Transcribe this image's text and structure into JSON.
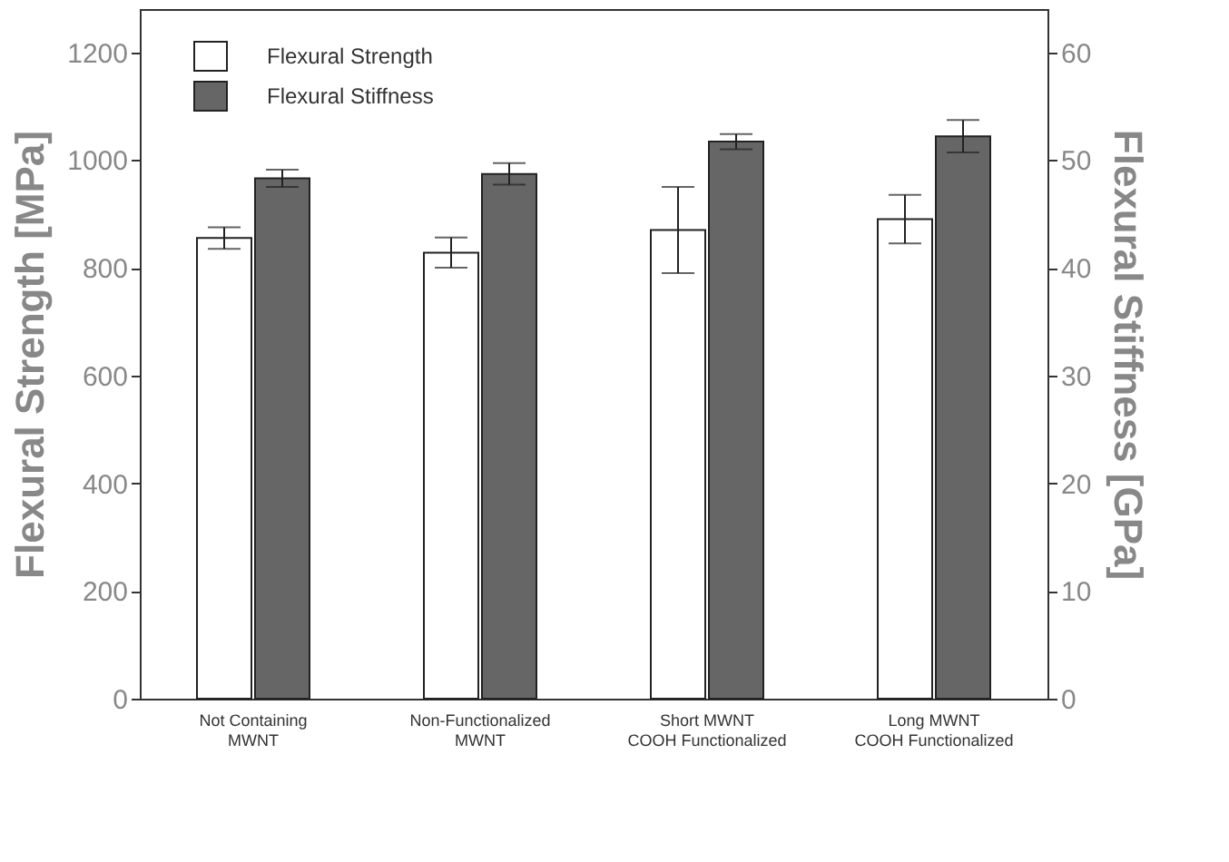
{
  "chart_data": {
    "type": "bar",
    "categories": [
      "Not Containing\nMWNT",
      "Non-Functionalized\nMWNT",
      "Short MWNT\nCOOH Functionalized",
      "Long MWNT\nCOOH Functionalized"
    ],
    "ylabel": "Flexural Strength [MPa]",
    "y2label": "Flexural Stiffness [GPa]",
    "ylim": [
      0,
      1280
    ],
    "yticks": [
      0,
      200,
      400,
      600,
      800,
      1000,
      1200
    ],
    "y2lim": [
      0,
      64
    ],
    "y2ticks": [
      0,
      10,
      20,
      30,
      40,
      50,
      60
    ],
    "legend": "top left",
    "grid": false,
    "series": [
      {
        "name": "Flexural Strength",
        "color": "#ffffff",
        "values": [
          855,
          828,
          870,
          890
        ],
        "errors": [
          20,
          28,
          80,
          45
        ]
      },
      {
        "name": "Flexural Stiffness",
        "color": "#666666",
        "axis": "y2",
        "values": [
          48.3,
          48.7,
          51.7,
          52.2
        ],
        "errors": [
          0.8,
          1.0,
          0.7,
          1.5
        ]
      }
    ]
  }
}
